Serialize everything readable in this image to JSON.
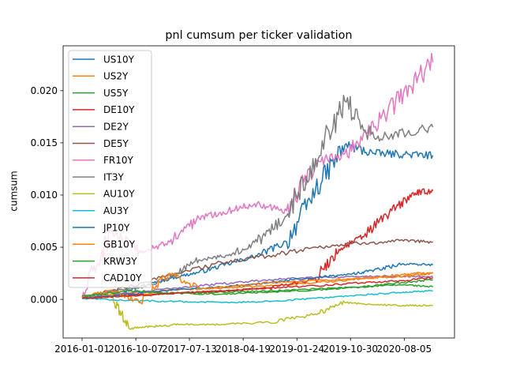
{
  "chart_data": {
    "type": "line",
    "title": "pnl cumsum per ticker validation",
    "xlabel": "",
    "ylabel": "cumsum",
    "x_ticks": [
      "2016-01-01",
      "2016-10-07",
      "2017-07-13",
      "2018-04-19",
      "2019-01-24",
      "2019-10-30",
      "2020-08-05"
    ],
    "x_range": [
      "2016-01-01",
      "2021-01-15"
    ],
    "y_ticks": [
      "0.000",
      "0.005",
      "0.010",
      "0.015",
      "0.020"
    ],
    "y_tick_values": [
      0.0,
      0.005,
      0.01,
      0.015,
      0.02
    ],
    "ylim": [
      -0.0037,
      0.0243
    ],
    "grid": false,
    "legend_position": "upper left",
    "series": [
      {
        "name": "US10Y",
        "color": "#1f77b4",
        "x": [
          "2016-01-01",
          "2016-06-01",
          "2016-11-01",
          "2017-04-01",
          "2017-09-01",
          "2018-02-01",
          "2018-07-01",
          "2018-12-01",
          "2019-05-01",
          "2019-10-01",
          "2020-03-01",
          "2020-08-01",
          "2021-01-01"
        ],
        "y": [
          0.0001,
          0.0004,
          0.0012,
          0.002,
          0.0026,
          0.0034,
          0.0042,
          0.0055,
          0.0105,
          0.0148,
          0.014,
          0.0139,
          0.0138
        ]
      },
      {
        "name": "US2Y",
        "color": "#ff7f0e",
        "x": [
          "2016-01-01",
          "2016-09-01",
          "2017-05-01",
          "2018-01-01",
          "2018-09-01",
          "2019-05-01",
          "2020-01-01",
          "2020-08-01",
          "2021-01-01"
        ],
        "y": [
          0.0002,
          0.0006,
          0.0009,
          0.0011,
          0.0013,
          0.0016,
          0.002,
          0.0024,
          0.0026
        ]
      },
      {
        "name": "US5Y",
        "color": "#2ca02c",
        "x": [
          "2016-01-01",
          "2016-09-01",
          "2017-05-01",
          "2018-01-01",
          "2018-09-01",
          "2019-05-01",
          "2020-01-01",
          "2020-08-01",
          "2021-01-01"
        ],
        "y": [
          0.0002,
          0.0004,
          0.0006,
          0.0007,
          0.0008,
          0.001,
          0.0012,
          0.0014,
          0.0012
        ]
      },
      {
        "name": "DE10Y",
        "color": "#d62728",
        "x": [
          "2016-01-01",
          "2016-09-01",
          "2017-05-01",
          "2018-01-01",
          "2018-09-01",
          "2019-05-01",
          "2019-09-01",
          "2020-01-01",
          "2020-06-01",
          "2020-10-01",
          "2021-01-01"
        ],
        "y": [
          0.0001,
          0.0004,
          0.0006,
          0.0008,
          0.0011,
          0.002,
          0.0048,
          0.006,
          0.0085,
          0.0102,
          0.0104
        ]
      },
      {
        "name": "DE2Y",
        "color": "#9467bd",
        "x": [
          "2016-01-01",
          "2016-09-01",
          "2017-05-01",
          "2018-01-01",
          "2018-09-01",
          "2019-05-01",
          "2020-01-01",
          "2020-08-01",
          "2021-01-01"
        ],
        "y": [
          0.0001,
          0.0006,
          0.0011,
          0.0015,
          0.0019,
          0.0021,
          0.0022,
          0.0022,
          0.0022
        ]
      },
      {
        "name": "DE5Y",
        "color": "#8c564b",
        "x": [
          "2016-01-01",
          "2016-09-01",
          "2017-05-01",
          "2018-01-01",
          "2018-09-01",
          "2019-05-01",
          "2020-01-01",
          "2020-08-01",
          "2021-01-01"
        ],
        "y": [
          0.0001,
          0.0012,
          0.0025,
          0.0035,
          0.0042,
          0.005,
          0.0054,
          0.0056,
          0.0055
        ]
      },
      {
        "name": "FR10Y",
        "color": "#e377c2",
        "x": [
          "2016-01-01",
          "2016-06-01",
          "2016-11-01",
          "2017-04-01",
          "2017-09-01",
          "2018-02-01",
          "2018-07-01",
          "2018-12-01",
          "2019-05-01",
          "2019-10-01",
          "2020-03-01",
          "2020-08-01",
          "2021-01-01"
        ],
        "y": [
          0.0002,
          0.0065,
          0.0045,
          0.0055,
          0.0078,
          0.0085,
          0.0092,
          0.0085,
          0.013,
          0.014,
          0.0165,
          0.0198,
          0.0227
        ]
      },
      {
        "name": "IT3Y",
        "color": "#7f7f7f",
        "x": [
          "2016-01-01",
          "2016-06-01",
          "2016-11-01",
          "2017-04-01",
          "2017-09-01",
          "2018-02-01",
          "2018-07-01",
          "2018-12-01",
          "2019-05-01",
          "2019-10-01",
          "2020-03-01",
          "2020-08-01",
          "2021-01-01"
        ],
        "y": [
          0.0001,
          0.0008,
          0.0012,
          0.002,
          0.0038,
          0.0042,
          0.0055,
          0.008,
          0.0135,
          0.019,
          0.0155,
          0.016,
          0.0165
        ]
      },
      {
        "name": "AU10Y",
        "color": "#bcbd22",
        "x": [
          "2016-01-01",
          "2016-06-01",
          "2016-09-01",
          "2017-01-01",
          "2017-06-01",
          "2018-01-01",
          "2018-09-01",
          "2019-05-01",
          "2019-10-01",
          "2020-03-01",
          "2020-08-01",
          "2021-01-01"
        ],
        "y": [
          0.0001,
          0.0003,
          -0.0028,
          -0.0026,
          -0.0024,
          -0.0024,
          -0.0022,
          -0.0014,
          -0.0003,
          -0.0005,
          -0.0006,
          -0.0006
        ]
      },
      {
        "name": "AU3Y",
        "color": "#17becf",
        "x": [
          "2016-01-01",
          "2016-09-01",
          "2017-05-01",
          "2018-01-01",
          "2018-09-01",
          "2019-05-01",
          "2020-01-01",
          "2020-08-01",
          "2021-01-01"
        ],
        "y": [
          0.0001,
          -0.0001,
          -0.0002,
          -0.0003,
          -0.0002,
          0.0001,
          0.0004,
          0.0007,
          0.0008
        ]
      },
      {
        "name": "JP10Y",
        "color": "#1f77b4",
        "x": [
          "2016-01-01",
          "2016-09-01",
          "2017-05-01",
          "2018-01-01",
          "2018-09-01",
          "2019-05-01",
          "2019-11-01",
          "2020-03-01",
          "2020-08-01",
          "2021-01-01"
        ],
        "y": [
          0.0001,
          0.0005,
          0.0009,
          0.0012,
          0.0016,
          0.0021,
          0.0024,
          0.0028,
          0.0034,
          0.0033
        ]
      },
      {
        "name": "GB10Y",
        "color": "#ff7f0e",
        "x": [
          "2016-01-01",
          "2016-06-01",
          "2016-11-01",
          "2017-04-01",
          "2017-09-01",
          "2018-02-01",
          "2018-09-01",
          "2019-05-01",
          "2020-01-01",
          "2020-08-01",
          "2021-01-01"
        ],
        "y": [
          0.0002,
          0.0009,
          -0.0003,
          0.0025,
          0.001,
          0.0012,
          0.0016,
          0.0018,
          0.002,
          0.0022,
          0.0025
        ]
      },
      {
        "name": "KRW3Y",
        "color": "#2ca02c",
        "x": [
          "2016-01-01",
          "2016-09-01",
          "2017-05-01",
          "2018-01-01",
          "2018-09-01",
          "2019-05-01",
          "2020-01-01",
          "2020-08-01",
          "2021-01-01"
        ],
        "y": [
          0.0003,
          0.0008,
          0.0006,
          0.0005,
          0.0007,
          0.0009,
          0.0012,
          0.0016,
          0.0019
        ]
      },
      {
        "name": "CAD10Y",
        "color": "#d62728",
        "x": [
          "2016-01-01",
          "2016-09-01",
          "2017-05-01",
          "2018-01-01",
          "2018-09-01",
          "2019-05-01",
          "2020-01-01",
          "2020-08-01",
          "2021-01-01"
        ],
        "y": [
          0.0001,
          0.0003,
          0.0006,
          0.0008,
          0.0011,
          0.0013,
          0.0016,
          0.0018,
          0.0021
        ]
      }
    ]
  }
}
